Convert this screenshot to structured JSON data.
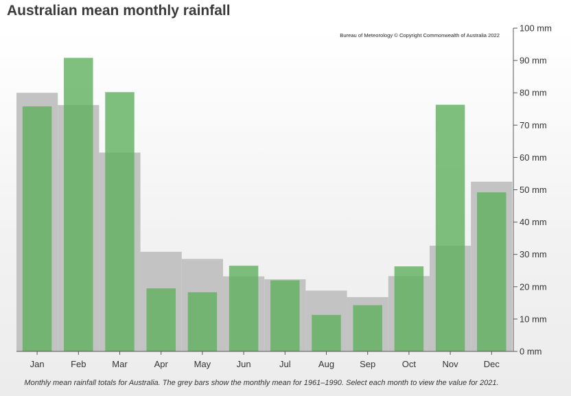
{
  "chart_data": {
    "type": "bar",
    "title": "Australian mean monthly rainfall",
    "copyright": "Bureau of Meteorology © Copyright Commonwealth of Australia 2022",
    "caption": "Monthly mean rainfall totals for Australia. The grey bars show the monthly mean for 1961–1990. Select each month to view the value for 2021.",
    "categories": [
      "Jan",
      "Feb",
      "Mar",
      "Apr",
      "May",
      "Jun",
      "Jul",
      "Aug",
      "Sep",
      "Oct",
      "Nov",
      "Dec"
    ],
    "series": [
      {
        "values": [
          80,
          76.2,
          61.5,
          30.8,
          28.6,
          23.2,
          22.3,
          18.8,
          16.8,
          23.3,
          32.7,
          52.5
        ],
        "color": "#c3c3c3"
      },
      {
        "values": [
          75.8,
          90.8,
          80.2,
          19.5,
          18.3,
          26.5,
          22,
          11.3,
          14.3,
          26.3,
          76.3,
          49.2
        ],
        "color": "#5fb05f"
      }
    ],
    "ylim": [
      0,
      100
    ],
    "yticks": [
      0,
      10,
      20,
      30,
      40,
      50,
      60,
      70,
      80,
      90,
      100
    ],
    "yunit": "mm",
    "yaxis_side": "right",
    "grid": false,
    "legend": "none"
  }
}
